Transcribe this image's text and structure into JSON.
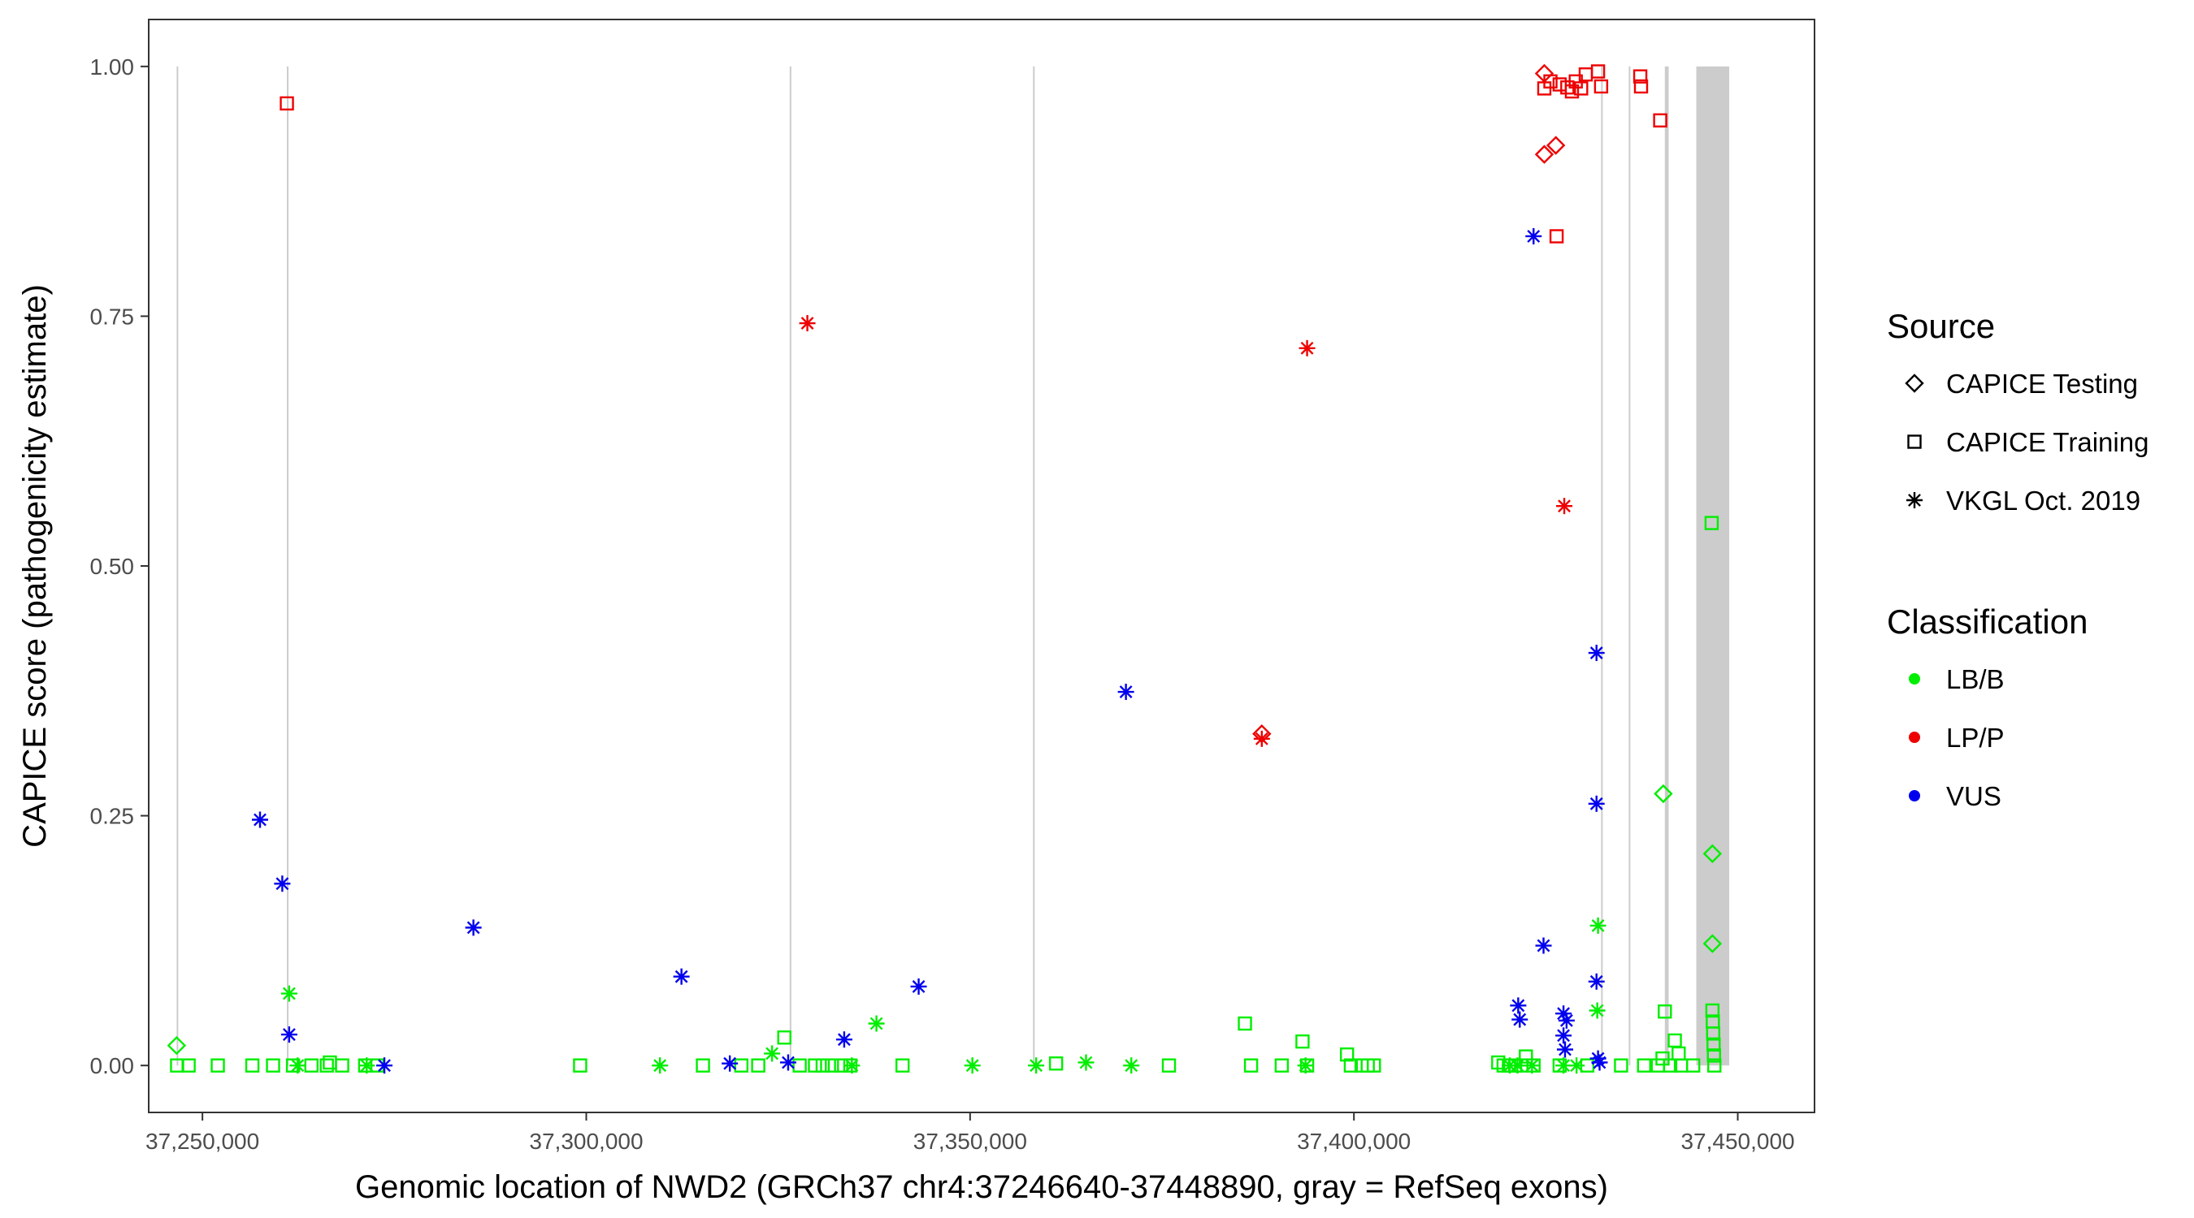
{
  "chart_data": {
    "type": "scatter",
    "xlabel": "Genomic location of NWD2 (GRCh37 chr4:37246640-37448890, gray = RefSeq exons)",
    "ylabel": "CAPICE score (pathogenicity estimate)",
    "xlim": [
      37243000,
      37460000
    ],
    "ylim": [
      -0.047,
      1.047
    ],
    "x_ticks": [
      37250000,
      37300000,
      37350000,
      37400000,
      37450000
    ],
    "x_tick_labels": [
      "37,250,000",
      "37,300,000",
      "37,350,000",
      "37,400,000",
      "37,450,000"
    ],
    "y_ticks": [
      0,
      0.25,
      0.5,
      0.75,
      1
    ],
    "y_tick_labels": [
      "0.00",
      "0.25",
      "0.50",
      "0.75",
      "1.00"
    ],
    "grid": false,
    "legend_placement": "right",
    "exon_color": "#cccccc",
    "exons": [
      [
        37246640,
        37246740
      ],
      [
        37261000,
        37261100
      ],
      [
        37326500,
        37326600
      ],
      [
        37358200,
        37358300
      ],
      [
        37432200,
        37432400
      ],
      [
        37435800,
        37436000
      ],
      [
        37440500,
        37441000
      ],
      [
        37444600,
        37448890
      ]
    ],
    "legend_source": {
      "title": "Source",
      "items": [
        {
          "name": "CAPICE Testing",
          "shape": "diamond"
        },
        {
          "name": "CAPICE Training",
          "shape": "square"
        },
        {
          "name": "VKGL Oct. 2019",
          "shape": "asterisk"
        }
      ]
    },
    "legend_classification": {
      "title": "Classification",
      "items": [
        {
          "name": "LB/B",
          "color": "#00ee00"
        },
        {
          "name": "LP/P",
          "color": "#ee0000"
        },
        {
          "name": "VUS",
          "color": "#0000ee"
        }
      ]
    },
    "series": [
      {
        "shape": "diamond",
        "class": "LB/B",
        "points": [
          [
            37246640,
            0.02
          ],
          [
            37440300,
            0.272
          ],
          [
            37446700,
            0.212
          ],
          [
            37446700,
            0.122
          ]
        ]
      },
      {
        "shape": "diamond",
        "class": "LP/P",
        "points": [
          [
            37424800,
            0.993
          ],
          [
            37424800,
            0.912
          ],
          [
            37426300,
            0.921
          ],
          [
            37388000,
            0.332
          ]
        ]
      },
      {
        "shape": "square",
        "class": "LB/B",
        "points": [
          [
            37246700,
            0.0
          ],
          [
            37248200,
            0.0
          ],
          [
            37252000,
            0.0
          ],
          [
            37256500,
            0.0
          ],
          [
            37259200,
            0.0
          ],
          [
            37261800,
            0.0
          ],
          [
            37264200,
            0.0
          ],
          [
            37266200,
            0.0
          ],
          [
            37266600,
            0.003
          ],
          [
            37268200,
            0.0
          ],
          [
            37271200,
            0.0
          ],
          [
            37272800,
            0.0
          ],
          [
            37299200,
            0.0
          ],
          [
            37315200,
            0.0
          ],
          [
            37320200,
            0.0
          ],
          [
            37322400,
            0.0
          ],
          [
            37325800,
            0.028
          ],
          [
            37327800,
            0.0
          ],
          [
            37329800,
            0.0
          ],
          [
            37330800,
            0.0
          ],
          [
            37332000,
            0.0
          ],
          [
            37333200,
            0.0
          ],
          [
            37334400,
            0.0
          ],
          [
            37341200,
            0.0
          ],
          [
            37361200,
            0.002
          ],
          [
            37375900,
            0.0
          ],
          [
            37385800,
            0.042
          ],
          [
            37386600,
            0.0
          ],
          [
            37390600,
            0.0
          ],
          [
            37393300,
            0.024
          ],
          [
            37393900,
            0.0
          ],
          [
            37399100,
            0.011
          ],
          [
            37399600,
            0.0
          ],
          [
            37401000,
            0.0
          ],
          [
            37401800,
            0.0
          ],
          [
            37402600,
            0.0
          ],
          [
            37418800,
            0.003
          ],
          [
            37419500,
            0.0
          ],
          [
            37420200,
            0.0
          ],
          [
            37421000,
            0.0
          ],
          [
            37421800,
            0.0
          ],
          [
            37422400,
            0.009
          ],
          [
            37423400,
            0.0
          ],
          [
            37426800,
            0.0
          ],
          [
            37430400,
            0.0
          ],
          [
            37434800,
            0.0
          ],
          [
            37437800,
            0.0
          ],
          [
            37439600,
            0.0
          ],
          [
            37440200,
            0.007
          ],
          [
            37440500,
            0.054
          ],
          [
            37441200,
            0.0
          ],
          [
            37441800,
            0.025
          ],
          [
            37442300,
            0.012
          ],
          [
            37442600,
            0.0
          ],
          [
            37444200,
            0.0
          ],
          [
            37446600,
            0.543
          ],
          [
            37446700,
            0.055
          ],
          [
            37446750,
            0.044
          ],
          [
            37446800,
            0.032
          ],
          [
            37446850,
            0.021
          ],
          [
            37446900,
            0.01
          ],
          [
            37446950,
            0.0
          ]
        ]
      },
      {
        "shape": "square",
        "class": "LP/P",
        "points": [
          [
            37261000,
            0.963
          ],
          [
            37424800,
            0.978
          ],
          [
            37425600,
            0.985
          ],
          [
            37426800,
            0.982
          ],
          [
            37427800,
            0.979
          ],
          [
            37428400,
            0.975
          ],
          [
            37428900,
            0.985
          ],
          [
            37429600,
            0.978
          ],
          [
            37430200,
            0.992
          ],
          [
            37431800,
            0.995
          ],
          [
            37432200,
            0.98
          ],
          [
            37437300,
            0.99
          ],
          [
            37437400,
            0.98
          ],
          [
            37439900,
            0.946
          ],
          [
            37426400,
            0.83
          ]
        ]
      },
      {
        "shape": "asterisk",
        "class": "LB/B",
        "points": [
          [
            37261300,
            0.072
          ],
          [
            37262400,
            0.0
          ],
          [
            37271400,
            0.0
          ],
          [
            37309600,
            0.0
          ],
          [
            37324200,
            0.012
          ],
          [
            37334600,
            0.0
          ],
          [
            37337800,
            0.042
          ],
          [
            37350300,
            0.0
          ],
          [
            37358600,
            0.0
          ],
          [
            37365100,
            0.003
          ],
          [
            37371000,
            0.0
          ],
          [
            37393700,
            0.0
          ],
          [
            37420300,
            0.0
          ],
          [
            37421300,
            0.0
          ],
          [
            37423200,
            0.0
          ],
          [
            37427300,
            0.0
          ],
          [
            37429000,
            0.0
          ],
          [
            37431800,
            0.14
          ],
          [
            37431700,
            0.055
          ]
        ]
      },
      {
        "shape": "asterisk",
        "class": "LP/P",
        "points": [
          [
            37328800,
            0.743
          ],
          [
            37393900,
            0.718
          ],
          [
            37427400,
            0.56
          ],
          [
            37388000,
            0.327
          ]
        ]
      },
      {
        "shape": "asterisk",
        "class": "VUS",
        "points": [
          [
            37257500,
            0.246
          ],
          [
            37260400,
            0.182
          ],
          [
            37261300,
            0.031
          ],
          [
            37273700,
            0.0
          ],
          [
            37285300,
            0.138
          ],
          [
            37312400,
            0.089
          ],
          [
            37318700,
            0.002
          ],
          [
            37326300,
            0.003
          ],
          [
            37333600,
            0.026
          ],
          [
            37343300,
            0.079
          ],
          [
            37370300,
            0.374
          ],
          [
            37423400,
            0.83
          ],
          [
            37431600,
            0.413
          ],
          [
            37431600,
            0.262
          ],
          [
            37424700,
            0.12
          ],
          [
            37431600,
            0.084
          ],
          [
            37421400,
            0.06
          ],
          [
            37421600,
            0.046
          ],
          [
            37427300,
            0.052
          ],
          [
            37427700,
            0.045
          ],
          [
            37427300,
            0.03
          ],
          [
            37427500,
            0.016
          ],
          [
            37431800,
            0.007
          ],
          [
            37432000,
            0.003
          ]
        ]
      }
    ]
  }
}
